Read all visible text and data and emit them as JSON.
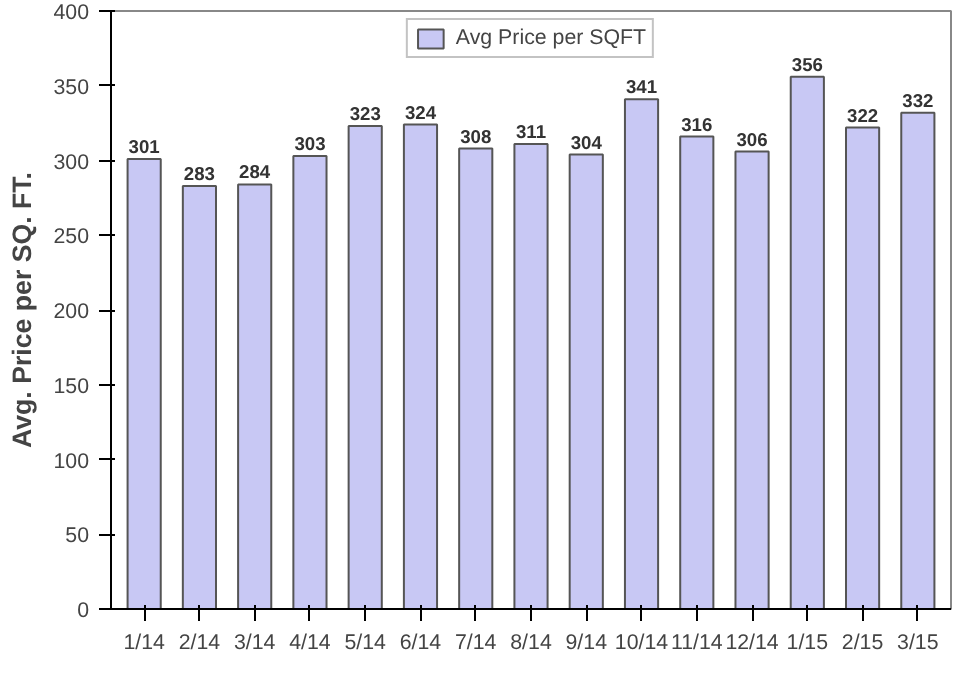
{
  "chart_data": {
    "type": "bar",
    "ylabel": "Avg. Price per SQ. FT.",
    "categories": [
      "1/14",
      "2/14",
      "3/14",
      "4/14",
      "5/14",
      "6/14",
      "7/14",
      "8/14",
      "9/14",
      "10/14",
      "11/14",
      "12/14",
      "1/15",
      "2/15",
      "3/15"
    ],
    "series": [
      {
        "name": "Avg Price per SQFT",
        "color": "#c8c8f4",
        "values": [
          301,
          283,
          284,
          303,
          323,
          324,
          308,
          311,
          304,
          341,
          316,
          306,
          356,
          322,
          332
        ]
      }
    ],
    "ylim": [
      0,
      400
    ],
    "yticks": [
      0,
      50,
      100,
      150,
      200,
      250,
      300,
      350,
      400
    ],
    "data_labels": true,
    "legend": "top",
    "grid": false
  }
}
